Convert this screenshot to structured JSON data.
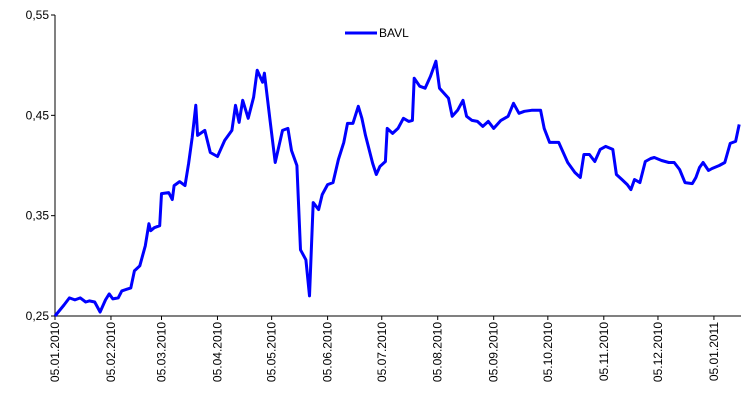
{
  "chart_data": {
    "type": "line",
    "x": [
      "05.01.2010",
      "10.01.2010",
      "13.01.2010",
      "16.01.2010",
      "19.01.2010",
      "22.01.2010",
      "24.01.2010",
      "27.01.2010",
      "30.01.2010",
      "02.02.2010",
      "04.02.2010",
      "06.02.2010",
      "09.02.2010",
      "11.02.2010",
      "16.02.2010",
      "18.02.2010",
      "21.02.2010",
      "24.02.2010",
      "26.02.2010",
      "27.02.2010",
      "01.03.2010",
      "04.03.2010",
      "05.03.2010",
      "09.03.2010",
      "11.03.2010",
      "12.03.2010",
      "15.03.2010",
      "18.03.2010",
      "20.03.2010",
      "22.03.2010",
      "24.03.2010",
      "25.03.2010",
      "29.03.2010",
      "01.04.2010",
      "04.04.2010",
      "05.04.2010",
      "09.04.2010",
      "13.04.2010",
      "15.04.2010",
      "17.04.2010",
      "19.04.2010",
      "22.04.2010",
      "25.04.2010",
      "27.04.2010",
      "30.04.2010",
      "01.05.2010",
      "04.05.2010",
      "07.05.2010",
      "11.05.2010",
      "14.05.2010",
      "16.05.2010",
      "19.05.2010",
      "21.05.2010",
      "24.05.2010",
      "26.05.2010",
      "28.05.2010",
      "31.05.2010",
      "02.06.2010",
      "05.06.2010",
      "08.06.2010",
      "11.06.2010",
      "14.06.2010",
      "16.06.2010",
      "19.06.2010",
      "22.06.2010",
      "24.06.2010",
      "26.06.2010",
      "30.06.2010",
      "02.07.2010",
      "04.07.2010",
      "07.07.2010",
      "08.07.2010",
      "11.07.2010",
      "14.07.2010",
      "17.07.2010",
      "20.07.2010",
      "22.07.2010",
      "23.07.2010",
      "26.07.2010",
      "29.07.2010",
      "01.08.2010",
      "04.08.2010",
      "06.08.2010",
      "11.08.2010",
      "13.08.2010",
      "16.08.2010",
      "19.08.2010",
      "21.08.2010",
      "24.08.2010",
      "27.08.2010",
      "30.08.2010",
      "02.09.2010",
      "05.09.2010",
      "09.09.2010",
      "13.09.2010",
      "16.09.2010",
      "19.09.2010",
      "22.09.2010",
      "26.09.2010",
      "01.10.2010",
      "03.10.2010",
      "06.10.2010",
      "11.10.2010",
      "16.10.2010",
      "20.10.2010",
      "23.10.2010",
      "25.10.2010",
      "28.10.2010",
      "31.10.2010",
      "03.11.2010",
      "06.11.2010",
      "10.11.2010",
      "12.11.2010",
      "15.11.2010",
      "18.11.2010",
      "20.11.2010",
      "22.11.2010",
      "25.11.2010",
      "28.11.2010",
      "01.12.2010",
      "03.12.2010",
      "07.12.2010",
      "11.12.2010",
      "14.12.2010",
      "17.12.2010",
      "20.12.2010",
      "24.12.2010",
      "26.12.2010",
      "28.12.2010",
      "30.12.2010",
      "02.01.2011",
      "04.01.2011",
      "08.01.2011",
      "11.01.2011",
      "14.01.2011",
      "17.01.2011",
      "19.01.2011"
    ],
    "series": [
      {
        "name": "BAVL",
        "color": "#0000ff",
        "values": [
          0.25,
          0.261,
          0.268,
          0.266,
          0.268,
          0.264,
          0.265,
          0.264,
          0.254,
          0.266,
          0.272,
          0.267,
          0.268,
          0.275,
          0.278,
          0.295,
          0.3,
          0.32,
          0.342,
          0.335,
          0.338,
          0.34,
          0.372,
          0.373,
          0.366,
          0.38,
          0.384,
          0.38,
          0.402,
          0.428,
          0.46,
          0.43,
          0.435,
          0.413,
          0.41,
          0.409,
          0.425,
          0.435,
          0.46,
          0.443,
          0.465,
          0.447,
          0.468,
          0.495,
          0.483,
          0.492,
          0.447,
          0.403,
          0.435,
          0.437,
          0.415,
          0.4,
          0.316,
          0.306,
          0.27,
          0.363,
          0.356,
          0.371,
          0.381,
          0.383,
          0.406,
          0.423,
          0.442,
          0.442,
          0.459,
          0.447,
          0.43,
          0.402,
          0.391,
          0.399,
          0.404,
          0.437,
          0.432,
          0.437,
          0.447,
          0.444,
          0.445,
          0.487,
          0.479,
          0.477,
          0.489,
          0.504,
          0.477,
          0.467,
          0.449,
          0.455,
          0.465,
          0.449,
          0.445,
          0.444,
          0.439,
          0.444,
          0.437,
          0.445,
          0.449,
          0.462,
          0.452,
          0.454,
          0.455,
          0.455,
          0.437,
          0.423,
          0.423,
          0.403,
          0.393,
          0.388,
          0.411,
          0.411,
          0.404,
          0.416,
          0.419,
          0.416,
          0.391,
          0.386,
          0.381,
          0.376,
          0.386,
          0.383,
          0.404,
          0.407,
          0.408,
          0.405,
          0.403,
          0.403,
          0.396,
          0.383,
          0.382,
          0.388,
          0.398,
          0.403,
          0.395,
          0.397,
          0.4,
          0.403,
          0.422,
          0.424,
          0.441
        ]
      }
    ],
    "xlim": [
      "05.01.2010",
      "20.01.2011"
    ],
    "xticks": [
      "05.01.2010",
      "05.02.2010",
      "05.03.2010",
      "05.04.2010",
      "05.05.2010",
      "05.06.2010",
      "05.07.2010",
      "05.08.2010",
      "05.09.2010",
      "05.10.2010",
      "05.11.2010",
      "05.12.2010",
      "05.01.2011"
    ],
    "ylim": [
      0.25,
      0.55
    ],
    "yticks": [
      {
        "value": 0.25,
        "label": "0,25"
      },
      {
        "value": 0.35,
        "label": "0,35"
      },
      {
        "value": 0.45,
        "label": "0,45"
      },
      {
        "value": 0.55,
        "label": "0,55"
      }
    ],
    "legend": "top"
  }
}
